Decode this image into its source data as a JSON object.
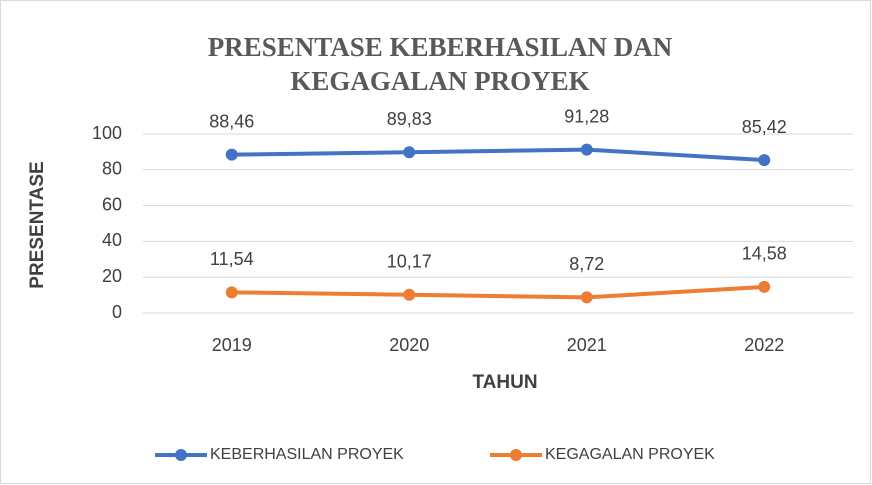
{
  "chart_data": {
    "type": "line",
    "title": "PRESENTASE KEBERHASILAN DAN KEGAGALAN PROYEK",
    "xlabel": "TAHUN",
    "ylabel": "PRESENTASE",
    "categories": [
      "2019",
      "2020",
      "2021",
      "2022"
    ],
    "series": [
      {
        "name": "KEBERHASILAN PROYEK",
        "color": "#4472c4",
        "values": [
          88.46,
          89.83,
          91.28,
          85.42
        ],
        "value_labels": [
          "88,46",
          "89,83",
          "91,28",
          "85,42"
        ]
      },
      {
        "name": "KEGAGALAN PROYEK",
        "color": "#ed7d31",
        "values": [
          11.54,
          10.17,
          8.72,
          14.58
        ],
        "value_labels": [
          "11,54",
          "10,17",
          "8,72",
          "14,58"
        ]
      }
    ],
    "ylim": [
      0,
      100
    ],
    "yticks": [
      0,
      20,
      40,
      60,
      80,
      100
    ],
    "grid": true,
    "legend": "bottom"
  }
}
